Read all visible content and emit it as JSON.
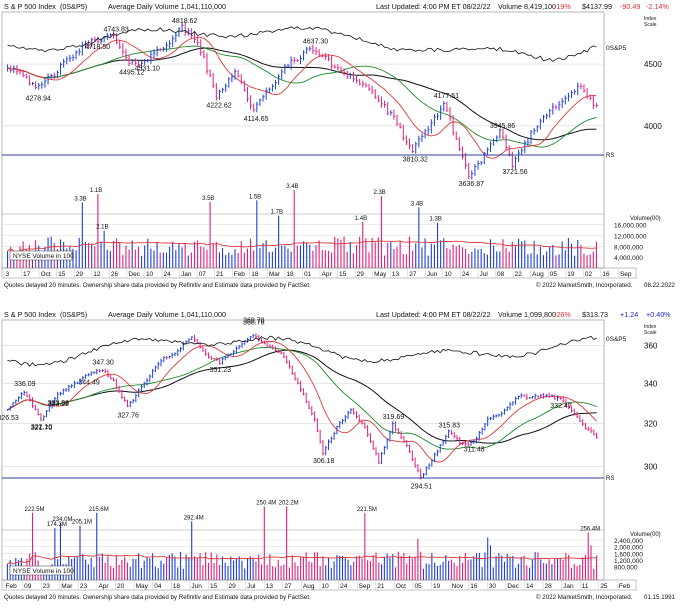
{
  "colors": {
    "up": "#1f3fd6",
    "down": "#e0207a",
    "ma50": "#e03a3a",
    "ma200": "#111111",
    "ma150": "#1e8a2a",
    "rs": "#111111",
    "rs_line_blue": "#2f3f9a",
    "vol_avg": "#e03a3a",
    "grid": "#cfcfcf",
    "header_red": "#e23030",
    "header_blue": "#2222cc"
  },
  "charts": [
    {
      "header": {
        "title": "S & P 500 Index",
        "symbol": "(0S&P5)",
        "avg_volume": "Average Daily Volume 1,041,110,000",
        "last_updated": "Last Updated: 4:00 PM ET 08/22/22",
        "volume": "Volume 8,419,100",
        "vol_pct": "-19%",
        "price": "$4137.99",
        "change": "-90.49",
        "change_pct": "-2.14%"
      },
      "index_scale_label": "Index\nScale",
      "rs_label_top": "0S&P5",
      "rs_label": "RS",
      "volume_box_label": "NYSE Volume in 100",
      "volume_axis_title": "Volume(00)",
      "footer_left": "Quotes delayed 20 minutes. Ownership share data provided by Refinitiv and Estimate data provided by FactSet.",
      "footer_right": "© 2022 MarketSmith, Incorporated.",
      "footer_date": "08.22.2022"
    },
    {
      "header": {
        "title": "S & P 500 Index",
        "symbol": "(0S&P5)",
        "avg_volume": "Average Daily Volume 1,041,110,000",
        "last_updated": "Last Updated: 4:00 PM ET 08/22/22",
        "volume": "Volume 1,099,800",
        "vol_pct": "-26%",
        "price": "$313.73",
        "change": "+1.24",
        "change_pct": "+0.40%"
      },
      "index_scale_label": "Index\nScale",
      "rs_label_top": "0S&P5",
      "rs_label": "RS",
      "volume_box_label": "NYSE Volume in 100",
      "volume_axis_title": "Volume(00)",
      "footer_left": "Quotes delayed 20 minutes. Ownership share data provided by Refinitiv and Estimate data provided by FactSet.",
      "footer_right": "© 2022 MarketSmith, Incorporated.",
      "footer_date": "01.15.1991"
    }
  ],
  "chart_data": [
    {
      "type": "line",
      "title": "S & P 500 Index",
      "price_axis": {
        "ticks": [
          4000,
          4500
        ],
        "tick_labels": [
          "4000",
          "4500"
        ],
        "ylim": [
          3500,
          4950
        ],
        "scale": "log"
      },
      "volume_axis": {
        "ticks": [
          4000000,
          8000000,
          12000000,
          16000000
        ],
        "tick_labels": [
          "4,000,000",
          "8,000,000",
          "12,000,000",
          "16,000,000"
        ]
      },
      "x_tick_labels": [
        "3",
        "17",
        "Oct",
        "15",
        "29",
        "12",
        "26",
        "Dec",
        "10",
        "24",
        "Jan",
        "07",
        "21",
        "Feb",
        "18",
        "Mar",
        "18",
        "01",
        "Apr",
        "15",
        "29",
        "May",
        "13",
        "27",
        "Jun",
        "10",
        "24",
        "Jul",
        "08",
        "22",
        "Aug",
        "05",
        "19",
        "02",
        "16",
        "Sep"
      ],
      "waypoints": [
        [
          0,
          4480
        ],
        [
          5,
          4430
        ],
        [
          9,
          4279
        ],
        [
          15,
          4420
        ],
        [
          22,
          4600
        ],
        [
          28,
          4718
        ],
        [
          34,
          4744
        ],
        [
          39,
          4495
        ],
        [
          44,
          4531
        ],
        [
          50,
          4650
        ],
        [
          56,
          4819
        ],
        [
          61,
          4700
        ],
        [
          67,
          4222
        ],
        [
          73,
          4450
        ],
        [
          79,
          4114
        ],
        [
          85,
          4330
        ],
        [
          91,
          4520
        ],
        [
          98,
          4637
        ],
        [
          104,
          4500
        ],
        [
          110,
          4400
        ],
        [
          117,
          4270
        ],
        [
          124,
          4050
        ],
        [
          130,
          3810
        ],
        [
          135,
          3980
        ],
        [
          140,
          4177
        ],
        [
          144,
          3900
        ],
        [
          148,
          3636
        ],
        [
          153,
          3780
        ],
        [
          158,
          3946
        ],
        [
          162,
          3721
        ],
        [
          167,
          3900
        ],
        [
          173,
          4100
        ],
        [
          179,
          4230
        ],
        [
          184,
          4305
        ],
        [
          189,
          4138
        ]
      ],
      "annotations": [
        {
          "label": "4278.94",
          "value": 4279
        },
        {
          "label": "4718.50",
          "value": 4718
        },
        {
          "label": "4743.83",
          "value": 4744
        },
        {
          "label": "4495.12",
          "value": 4495
        },
        {
          "label": "4531.10",
          "value": 4531
        },
        {
          "label": "4818.62",
          "value": 4819
        },
        {
          "label": "4222.62",
          "value": 4222
        },
        {
          "label": "4114.65",
          "value": 4114
        },
        {
          "label": "4637.30",
          "value": 4637
        },
        {
          "label": "4177.51",
          "value": 4177
        },
        {
          "label": "3810.32",
          "value": 3810
        },
        {
          "label": "3945.86",
          "value": 3946
        },
        {
          "label": "3636.87",
          "value": 3636
        },
        {
          "label": "3721.56",
          "value": 3721
        }
      ],
      "volume_annotations": [
        "3.3B",
        "1.1B",
        "2.1B",
        "3.5B",
        "1.5B",
        "1.7B",
        "3.4B",
        "1.4B",
        "2.3B",
        "3.4B",
        "1.3B"
      ],
      "series": [
        {
          "name": "0S&P5"
        },
        {
          "name": "RS"
        }
      ]
    },
    {
      "type": "line",
      "title": "S & P 500 Index",
      "price_axis": {
        "ticks": [
          300,
          320,
          340,
          360
        ],
        "tick_labels": [
          "300",
          "320",
          "340",
          "360"
        ],
        "ylim": [
          286,
          373
        ],
        "scale": "log"
      },
      "volume_axis": {
        "ticks": [
          800000,
          1200000,
          1600000,
          2000000,
          2400000
        ],
        "tick_labels": [
          "800,000",
          "1,200,000",
          "1,600,000",
          "2,000,000",
          "2,400,000"
        ]
      },
      "x_tick_labels": [
        "Feb",
        "09",
        "23",
        "Mar",
        "23",
        "Apr",
        "20",
        "May",
        "04",
        "18",
        "Jun",
        "15",
        "29",
        "Jul",
        "13",
        "27",
        "Aug",
        "10",
        "24",
        "Sep",
        "21",
        "Oct",
        "05",
        "19",
        "Nov",
        "16",
        "30",
        "Dec",
        "14",
        "28",
        "Jan",
        "11",
        "25",
        "Feb"
      ],
      "waypoints": [
        [
          0,
          327
        ],
        [
          6,
          336
        ],
        [
          12,
          322
        ],
        [
          18,
          334
        ],
        [
          24,
          340
        ],
        [
          29,
          345
        ],
        [
          34,
          347
        ],
        [
          38,
          341
        ],
        [
          43,
          328
        ],
        [
          49,
          340
        ],
        [
          55,
          352
        ],
        [
          60,
          356
        ],
        [
          66,
          365
        ],
        [
          71,
          355
        ],
        [
          76,
          351
        ],
        [
          82,
          358
        ],
        [
          88,
          366
        ],
        [
          93,
          360
        ],
        [
          98,
          356
        ],
        [
          104,
          340
        ],
        [
          110,
          322
        ],
        [
          113,
          306
        ],
        [
          118,
          318
        ],
        [
          123,
          327
        ],
        [
          128,
          318
        ],
        [
          133,
          302
        ],
        [
          138,
          320
        ],
        [
          143,
          309
        ],
        [
          148,
          295
        ],
        [
          153,
          305
        ],
        [
          158,
          316
        ],
        [
          163,
          310
        ],
        [
          167,
          311
        ],
        [
          172,
          322
        ],
        [
          178,
          326
        ],
        [
          183,
          334
        ],
        [
          187,
          333
        ],
        [
          193,
          334
        ],
        [
          198,
          332
        ],
        [
          203,
          325
        ],
        [
          207,
          318
        ],
        [
          211,
          314
        ]
      ],
      "annotations": [
        {
          "label": "336.09",
          "value": 336.09
        },
        {
          "label": "322.10",
          "value": 322.1
        },
        {
          "label": "344.49",
          "value": 344.49
        },
        {
          "label": "333.62",
          "value": 333.62
        },
        {
          "label": "347.30",
          "value": 347.3
        },
        {
          "label": "327.76",
          "value": 327.76
        },
        {
          "label": "368.78",
          "value": 368.78
        },
        {
          "label": "351.23",
          "value": 351.23
        },
        {
          "label": "369.78",
          "value": 369.78
        },
        {
          "label": "306.18",
          "value": 306.18
        },
        {
          "label": "326.53",
          "value": 326.53
        },
        {
          "label": "319.69",
          "value": 319.69
        },
        {
          "label": "315.83",
          "value": 315.83
        },
        {
          "label": "294.51",
          "value": 294.51
        },
        {
          "label": "321.70",
          "value": 321.7
        },
        {
          "label": "311.48",
          "value": 311.48
        },
        {
          "label": "333.98",
          "value": 333.98
        },
        {
          "label": "332.47",
          "value": 332.47
        }
      ],
      "volume_annotations": [
        "222.5M",
        "174.3M",
        "234.0M",
        "205.1M",
        "215.6M",
        "292.4M",
        "250.4M",
        "202.2M",
        "221.5M",
        "256.4M"
      ],
      "series": [
        {
          "name": "0S&P5"
        },
        {
          "name": "RS"
        }
      ]
    }
  ]
}
